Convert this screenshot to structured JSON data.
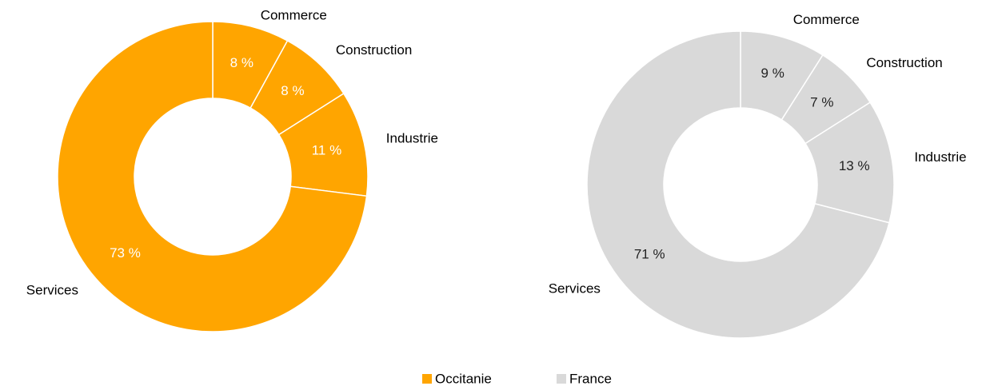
{
  "chart_data": [
    {
      "type": "donut",
      "name": "Occitanie",
      "color": "#ffa500",
      "label_color": "#ffffff",
      "categories": [
        "Commerce",
        "Construction",
        "Industrie",
        "Services"
      ],
      "values": [
        8,
        8,
        11,
        73
      ],
      "value_labels": [
        "8 %",
        "8 %",
        "11 %",
        "73 %"
      ]
    },
    {
      "type": "donut",
      "name": "France",
      "color": "#d9d9d9",
      "label_color": "#222222",
      "categories": [
        "Commerce",
        "Construction",
        "Industrie",
        "Services"
      ],
      "values": [
        9,
        7,
        13,
        71
      ],
      "value_labels": [
        "9 %",
        "7 %",
        "13 %",
        "71 %"
      ]
    }
  ]
}
